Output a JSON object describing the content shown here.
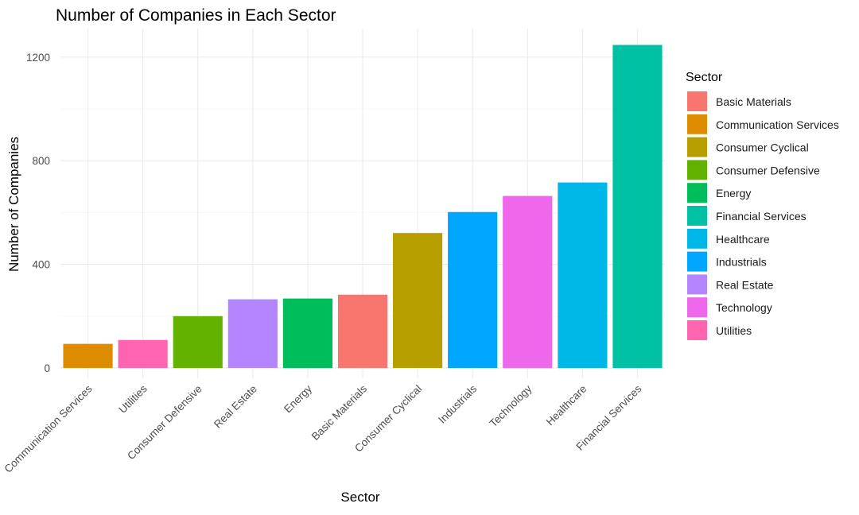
{
  "chart_data": {
    "type": "bar",
    "title": "Number of Companies in Each Sector",
    "xlabel": "Sector",
    "ylabel": "Number of Companies",
    "categories": [
      "Communication Services",
      "Utilities",
      "Consumer Defensive",
      "Real Estate",
      "Energy",
      "Basic Materials",
      "Consumer Cyclical",
      "Industrials",
      "Technology",
      "Healthcare",
      "Financial Services"
    ],
    "values": [
      93,
      108,
      200,
      265,
      268,
      283,
      521,
      602,
      664,
      716,
      1247
    ],
    "bar_colors": [
      "#DE8C00",
      "#FF64B0",
      "#64B200",
      "#B385FF",
      "#00BD5C",
      "#F8766D",
      "#B79F00",
      "#00A6FF",
      "#EF67EB",
      "#00B8E7",
      "#00C1A3"
    ],
    "ylim": [
      -40,
      1310
    ],
    "yticks": [
      0,
      400,
      800,
      1200
    ],
    "grid": true,
    "legend": {
      "title": "Sector",
      "position": "right",
      "entries": [
        {
          "label": "Basic Materials",
          "color": "#F8766D"
        },
        {
          "label": "Communication Services",
          "color": "#DE8C00"
        },
        {
          "label": "Consumer Cyclical",
          "color": "#B79F00"
        },
        {
          "label": "Consumer Defensive",
          "color": "#64B200"
        },
        {
          "label": "Energy",
          "color": "#00BD5C"
        },
        {
          "label": "Financial Services",
          "color": "#00C1A3"
        },
        {
          "label": "Healthcare",
          "color": "#00B8E7"
        },
        {
          "label": "Industrials",
          "color": "#00A6FF"
        },
        {
          "label": "Real Estate",
          "color": "#B385FF"
        },
        {
          "label": "Technology",
          "color": "#EF67EB"
        },
        {
          "label": "Utilities",
          "color": "#FF64B0"
        }
      ]
    }
  }
}
